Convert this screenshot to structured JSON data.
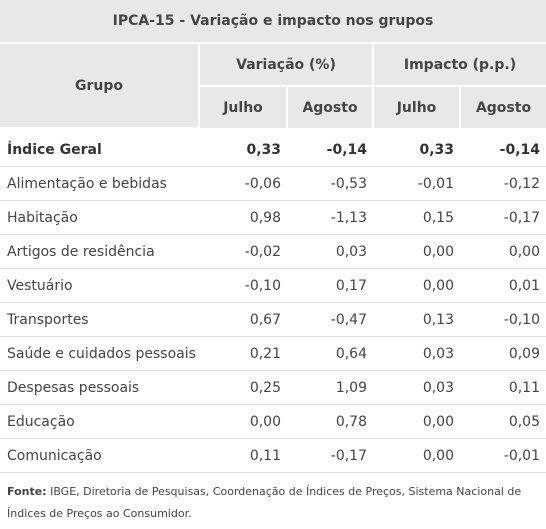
{
  "table": {
    "title": "IPCA-15 - Variação e impacto nos grupos",
    "header": {
      "grupo": "Grupo",
      "variacao": "Variação (%)",
      "impacto": "Impacto (p.p.)",
      "julho_1": "Julho",
      "agosto_1": "Agosto",
      "julho_2": "Julho",
      "agosto_2": "Agosto"
    },
    "rows": [
      {
        "grupo": "Índice Geral",
        "var_jul": "0,33",
        "var_ago": "-0,14",
        "imp_jul": "0,33",
        "imp_ago": "-0,14"
      },
      {
        "grupo": "Alimentação e bebidas",
        "var_jul": "-0,06",
        "var_ago": "-0,53",
        "imp_jul": "-0,01",
        "imp_ago": "-0,12"
      },
      {
        "grupo": "Habitação",
        "var_jul": "0,98",
        "var_ago": "-1,13",
        "imp_jul": "0,15",
        "imp_ago": "-0,17"
      },
      {
        "grupo": "Artigos de residência",
        "var_jul": "-0,02",
        "var_ago": "0,03",
        "imp_jul": "0,00",
        "imp_ago": "0,00"
      },
      {
        "grupo": "Vestuário",
        "var_jul": "-0,10",
        "var_ago": "0,17",
        "imp_jul": "0,00",
        "imp_ago": "0,01"
      },
      {
        "grupo": "Transportes",
        "var_jul": "0,67",
        "var_ago": "-0,47",
        "imp_jul": "0,13",
        "imp_ago": "-0,10"
      },
      {
        "grupo": "Saúde e cuidados pessoais",
        "var_jul": "0,21",
        "var_ago": "0,64",
        "imp_jul": "0,03",
        "imp_ago": "0,09"
      },
      {
        "grupo": "Despesas pessoais",
        "var_jul": "0,25",
        "var_ago": "1,09",
        "imp_jul": "0,03",
        "imp_ago": "0,11"
      },
      {
        "grupo": "Educação",
        "var_jul": "0,00",
        "var_ago": "0,78",
        "imp_jul": "0,00",
        "imp_ago": "0,05"
      },
      {
        "grupo": "Comunicação",
        "var_jul": "0,11",
        "var_ago": "-0,17",
        "imp_jul": "0,00",
        "imp_ago": "-0,01"
      }
    ]
  },
  "source": {
    "label": "Fonte:",
    "text": " IBGE, Diretoria de Pesquisas, Coordenação de Índices de Preços, Sistema Nacional de Índices de Preços ao Consumidor."
  }
}
